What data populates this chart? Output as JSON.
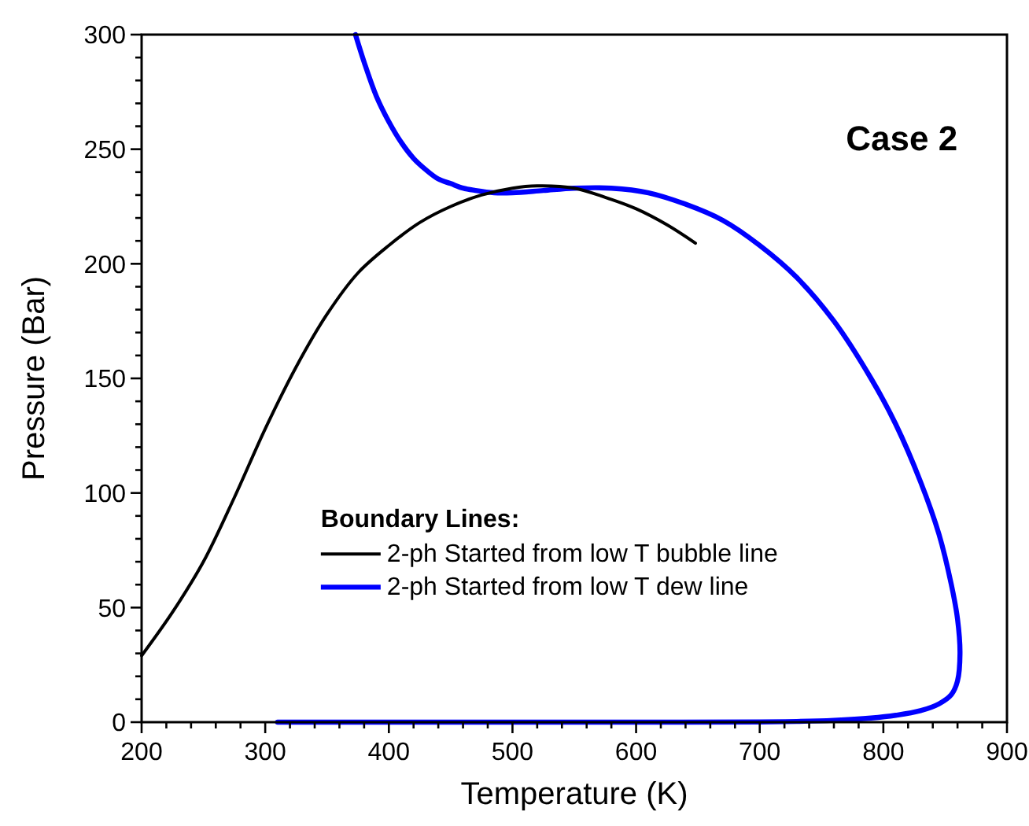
{
  "chart_data": {
    "type": "line",
    "xlabel": "Temperature (K)",
    "ylabel": "Pressure (Bar)",
    "legend_title": "Boundary Lines:",
    "annotations": [
      "Case 2"
    ],
    "legend": "bottom",
    "grid": false,
    "marker": "none",
    "line_style": "solid",
    "xlim": [
      200,
      900
    ],
    "ylim": [
      0,
      300
    ],
    "xticks": [
      200,
      {
        "value": 220,
        "label": null
      },
      {
        "value": 240,
        "label": null
      },
      {
        "value": 260,
        "label": null
      },
      {
        "value": 280,
        "label": null
      },
      300,
      {
        "value": 320,
        "label": null
      },
      {
        "value": 340,
        "label": null
      },
      {
        "value": 360,
        "label": null
      },
      {
        "value": 380,
        "label": null
      },
      400,
      {
        "value": 420,
        "label": null
      },
      {
        "value": 440,
        "label": null
      },
      {
        "value": 460,
        "label": null
      },
      {
        "value": 480,
        "label": null
      },
      500,
      {
        "value": 520,
        "label": null
      },
      {
        "value": 540,
        "label": null
      },
      {
        "value": 560,
        "label": null
      },
      {
        "value": 580,
        "label": null
      },
      600,
      {
        "value": 620,
        "label": null
      },
      {
        "value": 640,
        "label": null
      },
      {
        "value": 660,
        "label": null
      },
      {
        "value": 680,
        "label": null
      },
      700,
      {
        "value": 720,
        "label": null
      },
      {
        "value": 740,
        "label": null
      },
      {
        "value": 760,
        "label": null
      },
      {
        "value": 780,
        "label": null
      },
      800,
      {
        "value": 820,
        "label": null
      },
      {
        "value": 840,
        "label": null
      },
      {
        "value": 860,
        "label": null
      },
      {
        "value": 880,
        "label": null
      },
      900
    ],
    "yticks": [
      0,
      {
        "value": 10,
        "label": null
      },
      {
        "value": 20,
        "label": null
      },
      {
        "value": 30,
        "label": null
      },
      {
        "value": 40,
        "label": null
      },
      50,
      {
        "value": 60,
        "label": null
      },
      {
        "value": 70,
        "label": null
      },
      {
        "value": 80,
        "label": null
      },
      {
        "value": 90,
        "label": null
      },
      100,
      {
        "value": 110,
        "label": null
      },
      {
        "value": 120,
        "label": null
      },
      {
        "value": 130,
        "label": null
      },
      {
        "value": 140,
        "label": null
      },
      150,
      {
        "value": 160,
        "label": null
      },
      {
        "value": 170,
        "label": null
      },
      {
        "value": 180,
        "label": null
      },
      {
        "value": 190,
        "label": null
      },
      200,
      {
        "value": 210,
        "label": null
      },
      {
        "value": 220,
        "label": null
      },
      {
        "value": 230,
        "label": null
      },
      {
        "value": 240,
        "label": null
      },
      250,
      {
        "value": 260,
        "label": null
      },
      {
        "value": 270,
        "label": null
      },
      {
        "value": 280,
        "label": null
      },
      {
        "value": 290,
        "label": null
      },
      300
    ],
    "series": [
      {
        "name": "2-ph Started from low T bubble line",
        "color": "#000000",
        "x": [
          200,
          225,
          250,
          275,
          300,
          325,
          350,
          375,
          400,
          425,
          450,
          475,
          500,
          520,
          550,
          575,
          600,
          625,
          648
        ],
        "values": [
          29,
          48,
          70,
          98,
          128,
          155,
          178,
          196,
          208,
          218,
          225,
          230,
          233,
          234,
          233,
          229,
          224,
          217,
          209
        ]
      },
      {
        "name": "2-ph Started from low T dew line",
        "color": "#0000ff",
        "x": [
          373,
          380,
          390,
          400,
          410,
          420,
          430,
          440,
          450,
          460,
          470,
          485,
          500,
          525,
          550,
          580,
          610,
          640,
          670,
          700,
          730,
          760,
          790,
          810,
          830,
          845,
          855,
          860,
          862,
          860,
          855,
          845,
          830,
          810,
          790,
          760,
          730,
          700,
          600,
          500,
          400,
          310
        ],
        "values": [
          300,
          288,
          273,
          262,
          253,
          246,
          241,
          237,
          235,
          233,
          232,
          231,
          231,
          232,
          233,
          233,
          231,
          226,
          219,
          208,
          194,
          175,
          150,
          130,
          105,
          82,
          60,
          45,
          30,
          18,
          12,
          8,
          5,
          3,
          1.8,
          0.8,
          0.3,
          0.1,
          0,
          0,
          0,
          0
        ]
      }
    ]
  }
}
